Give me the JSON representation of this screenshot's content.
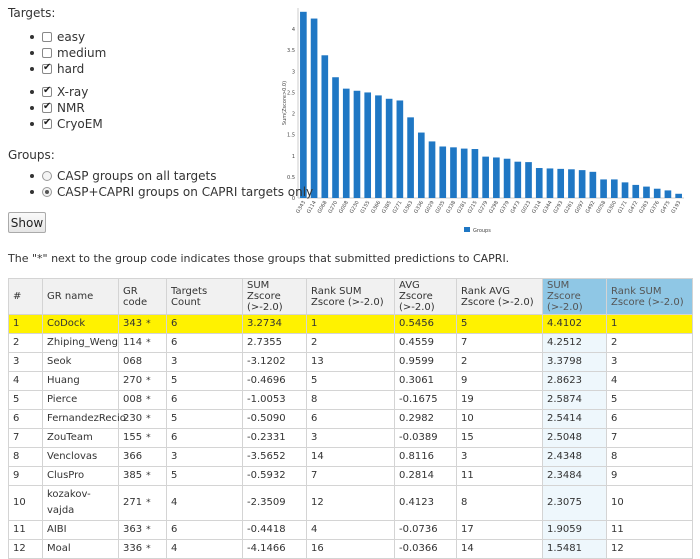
{
  "targets": {
    "heading": "Targets:",
    "difficulty": [
      {
        "label": "easy",
        "checked": false
      },
      {
        "label": "medium",
        "checked": false
      },
      {
        "label": "hard",
        "checked": true
      }
    ],
    "method": [
      {
        "label": "X-ray",
        "checked": true
      },
      {
        "label": "NMR",
        "checked": true
      },
      {
        "label": "CryoEM",
        "checked": true
      }
    ]
  },
  "groups": {
    "heading": "Groups:",
    "options": [
      {
        "label": "CASP groups on all targets",
        "checked": false
      },
      {
        "label": "CASP+CAPRI groups on CAPRI targets only",
        "checked": true
      }
    ]
  },
  "show_label": "Show",
  "note": "The \"*\" next to the group code indicates those groups that submitted predictions to CAPRI.",
  "chart_data": {
    "type": "bar",
    "ylabel": "Sum(Zscore>0.0)",
    "legend": "Groups",
    "legend_position": "bottom-center",
    "color": "#1f77c4",
    "ylim": [
      0,
      4.5
    ],
    "yticks": [
      0,
      0.5,
      1,
      1.5,
      2,
      2.5,
      3,
      3.5,
      4
    ],
    "categories": [
      "G343",
      "G114",
      "G068",
      "G270",
      "G008",
      "G230",
      "G155",
      "G366",
      "G385",
      "G271",
      "G363",
      "G336",
      "G029",
      "G035",
      "G338",
      "G281",
      "G215",
      "G279",
      "G298",
      "G379",
      "G473",
      "G023",
      "G314",
      "G344",
      "G293",
      "G261",
      "G097",
      "G492",
      "G058",
      "G300",
      "G171",
      "G472",
      "G263",
      "G376",
      "G475",
      "G193"
    ],
    "values": [
      4.41,
      4.25,
      3.38,
      2.86,
      2.59,
      2.54,
      2.5,
      2.43,
      2.35,
      2.31,
      1.91,
      1.55,
      1.34,
      1.22,
      1.2,
      1.17,
      1.16,
      0.98,
      0.96,
      0.93,
      0.86,
      0.85,
      0.71,
      0.7,
      0.69,
      0.68,
      0.66,
      0.62,
      0.44,
      0.44,
      0.37,
      0.31,
      0.27,
      0.22,
      0.18,
      0.1
    ]
  },
  "table": {
    "headers": [
      "#",
      "GR name",
      "GR code",
      "Targets Count",
      "SUM Zscore (>-2.0)",
      "Rank SUM Zscore (>-2.0)",
      "AVG Zscore (>-2.0)",
      "Rank AVG Zscore (>-2.0)",
      "SUM Zscore (>-2.0)",
      "Rank SUM Zscore (>-2.0)"
    ],
    "rows": [
      [
        "1",
        "CoDock",
        "343",
        "*",
        "6",
        "3.2734",
        "1",
        "0.5456",
        "5",
        "4.4102",
        "1"
      ],
      [
        "2",
        "Zhiping_Weng",
        "114",
        "*",
        "6",
        "2.7355",
        "2",
        "0.4559",
        "7",
        "4.2512",
        "2"
      ],
      [
        "3",
        "Seok",
        "068",
        "",
        "3",
        "-3.1202",
        "13",
        "0.9599",
        "2",
        "3.3798",
        "3"
      ],
      [
        "4",
        "Huang",
        "270",
        "*",
        "5",
        "-0.4696",
        "5",
        "0.3061",
        "9",
        "2.8623",
        "4"
      ],
      [
        "5",
        "Pierce",
        "008",
        "*",
        "6",
        "-1.0053",
        "8",
        "-0.1675",
        "19",
        "2.5874",
        "5"
      ],
      [
        "6",
        "FernandezRecio",
        "230",
        "*",
        "5",
        "-0.5090",
        "6",
        "0.2982",
        "10",
        "2.5414",
        "6"
      ],
      [
        "7",
        "ZouTeam",
        "155",
        "*",
        "6",
        "-0.2331",
        "3",
        "-0.0389",
        "15",
        "2.5048",
        "7"
      ],
      [
        "8",
        "Venclovas",
        "366",
        "",
        "3",
        "-3.5652",
        "14",
        "0.8116",
        "3",
        "2.4348",
        "8"
      ],
      [
        "9",
        "ClusPro",
        "385",
        "*",
        "5",
        "-0.5932",
        "7",
        "0.2814",
        "11",
        "2.3484",
        "9"
      ],
      [
        "10",
        "kozakov-vajda",
        "271",
        "*",
        "4",
        "-2.3509",
        "12",
        "0.4123",
        "8",
        "2.3075",
        "10"
      ],
      [
        "11",
        "AIBI",
        "363",
        "*",
        "6",
        "-0.4418",
        "4",
        "-0.0736",
        "17",
        "1.9059",
        "11"
      ],
      [
        "12",
        "Moal",
        "336",
        "*",
        "4",
        "-4.1466",
        "16",
        "-0.0366",
        "14",
        "1.5481",
        "12"
      ]
    ]
  }
}
